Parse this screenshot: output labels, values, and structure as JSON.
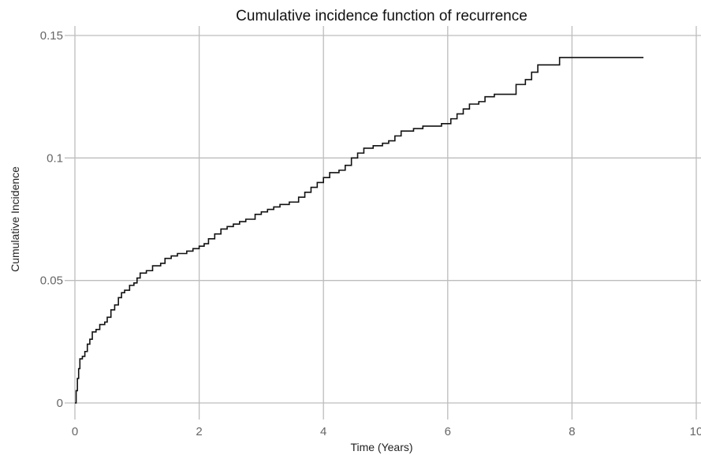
{
  "chart_data": {
    "type": "line",
    "title": "Cumulative incidence function of recurrence",
    "xlabel": "Time (Years)",
    "ylabel": "Cumulative Incidence",
    "xlim": [
      0,
      10
    ],
    "ylim": [
      0,
      0.15
    ],
    "x_ticks": [
      {
        "value": 0,
        "label": "0"
      },
      {
        "value": 2,
        "label": "2"
      },
      {
        "value": 4,
        "label": "4"
      },
      {
        "value": 6,
        "label": "6"
      },
      {
        "value": 8,
        "label": "8"
      },
      {
        "value": 10,
        "label": "10"
      }
    ],
    "y_ticks": [
      {
        "value": 0,
        "label": "0"
      },
      {
        "value": 0.05,
        "label": "0.05"
      },
      {
        "value": 0.1,
        "label": "0.1"
      },
      {
        "value": 0.15,
        "label": "0.15"
      }
    ],
    "grid": true,
    "legend": "none",
    "line_color": "#111111",
    "grid_color": "#bdbdbd",
    "series": [
      {
        "step": true,
        "points": [
          [
            0,
            0
          ],
          [
            0.02,
            0.005
          ],
          [
            0.04,
            0.01
          ],
          [
            0.06,
            0.014
          ],
          [
            0.08,
            0.018
          ],
          [
            0.12,
            0.019
          ],
          [
            0.16,
            0.021
          ],
          [
            0.2,
            0.024
          ],
          [
            0.24,
            0.026
          ],
          [
            0.28,
            0.029
          ],
          [
            0.34,
            0.03
          ],
          [
            0.4,
            0.032
          ],
          [
            0.48,
            0.033
          ],
          [
            0.52,
            0.035
          ],
          [
            0.58,
            0.038
          ],
          [
            0.64,
            0.04
          ],
          [
            0.7,
            0.043
          ],
          [
            0.75,
            0.045
          ],
          [
            0.8,
            0.046
          ],
          [
            0.88,
            0.048
          ],
          [
            0.95,
            0.049
          ],
          [
            1.0,
            0.051
          ],
          [
            1.05,
            0.053
          ],
          [
            1.15,
            0.054
          ],
          [
            1.25,
            0.056
          ],
          [
            1.38,
            0.057
          ],
          [
            1.45,
            0.059
          ],
          [
            1.55,
            0.06
          ],
          [
            1.65,
            0.061
          ],
          [
            1.8,
            0.062
          ],
          [
            1.9,
            0.063
          ],
          [
            2.0,
            0.064
          ],
          [
            2.08,
            0.065
          ],
          [
            2.15,
            0.067
          ],
          [
            2.25,
            0.069
          ],
          [
            2.35,
            0.071
          ],
          [
            2.45,
            0.072
          ],
          [
            2.55,
            0.073
          ],
          [
            2.65,
            0.074
          ],
          [
            2.75,
            0.075
          ],
          [
            2.9,
            0.077
          ],
          [
            3.0,
            0.078
          ],
          [
            3.1,
            0.079
          ],
          [
            3.2,
            0.08
          ],
          [
            3.3,
            0.081
          ],
          [
            3.45,
            0.082
          ],
          [
            3.6,
            0.084
          ],
          [
            3.7,
            0.086
          ],
          [
            3.8,
            0.088
          ],
          [
            3.9,
            0.09
          ],
          [
            4.0,
            0.092
          ],
          [
            4.1,
            0.094
          ],
          [
            4.25,
            0.095
          ],
          [
            4.35,
            0.097
          ],
          [
            4.45,
            0.1
          ],
          [
            4.55,
            0.102
          ],
          [
            4.65,
            0.104
          ],
          [
            4.8,
            0.105
          ],
          [
            4.95,
            0.106
          ],
          [
            5.05,
            0.107
          ],
          [
            5.15,
            0.109
          ],
          [
            5.25,
            0.111
          ],
          [
            5.45,
            0.112
          ],
          [
            5.6,
            0.113
          ],
          [
            5.9,
            0.114
          ],
          [
            6.05,
            0.116
          ],
          [
            6.15,
            0.118
          ],
          [
            6.25,
            0.12
          ],
          [
            6.35,
            0.122
          ],
          [
            6.5,
            0.123
          ],
          [
            6.6,
            0.125
          ],
          [
            6.75,
            0.126
          ],
          [
            7.1,
            0.13
          ],
          [
            7.25,
            0.132
          ],
          [
            7.35,
            0.135
          ],
          [
            7.45,
            0.138
          ],
          [
            7.8,
            0.141
          ],
          [
            9.15,
            0.141
          ]
        ]
      }
    ]
  }
}
